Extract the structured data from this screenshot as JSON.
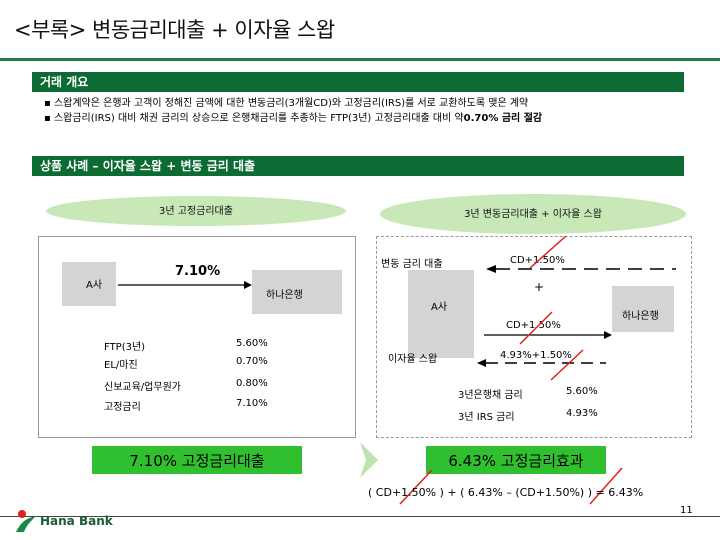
{
  "title": "<부록> 변동금리대출 + 이자율 스왑",
  "section1": {
    "heading": "거래 개요",
    "bullet1": "▪ 스왑계약은 은행과 고객이 정해진 금액에 대한 변동금리(3개월CD)와 고정금리(IRS)를 서로 교환하도록 맺은 계약",
    "bullet2_prefix": "▪ 스왑금리(IRS) 대비 채권 금리의 상승으로 은행채금리를 추종하는 FTP(3년) 고정금리대출 대비 약",
    "bullet2_emph": "0.70% 금리 절감"
  },
  "section2": {
    "heading": "상품 사례 – 이자율 스왑 + 변동 금리 대출"
  },
  "left": {
    "oval_label": "3년 고정금리대출",
    "company": "A사",
    "bank": "하나은행",
    "rate": "7.10%",
    "rows": [
      {
        "label": "FTP(3년)",
        "value": "5.60%"
      },
      {
        "label": "EL/마진",
        "value": "0.70%"
      },
      {
        "label": "신보교육/업무원가",
        "value": "0.80%"
      },
      {
        "label": "고정금리",
        "value": "7.10%"
      }
    ],
    "result": "7.10% 고정금리대출"
  },
  "right": {
    "oval_label": "3년 변동금리대출 + 이자율 스왑",
    "floating_loan": "변동 금리 대출",
    "cd_top": "CD+1.50%",
    "plus": "+",
    "company": "A사",
    "bank": "하나은행",
    "cd_mid": "CD+1.50%",
    "swap": "이자율 스왑",
    "swap_rate": "4.93%+1.50%",
    "rows": [
      {
        "label": "3년은행채 금리",
        "value": "5.60%"
      },
      {
        "label": "3년 IRS 금리",
        "value": "4.93%"
      }
    ],
    "result": "6.43% 고정금리효과"
  },
  "formula": "( CD+1.50% ) + ( 6.43% – (CD+1.50%) ) = 6.43%",
  "page_number": "11",
  "logo": "Hana Bank",
  "colors": {
    "accent": "#0b6b32",
    "oval": "#c8e8b8",
    "highlight": "#2fbf2f",
    "cross": "#e02020"
  }
}
